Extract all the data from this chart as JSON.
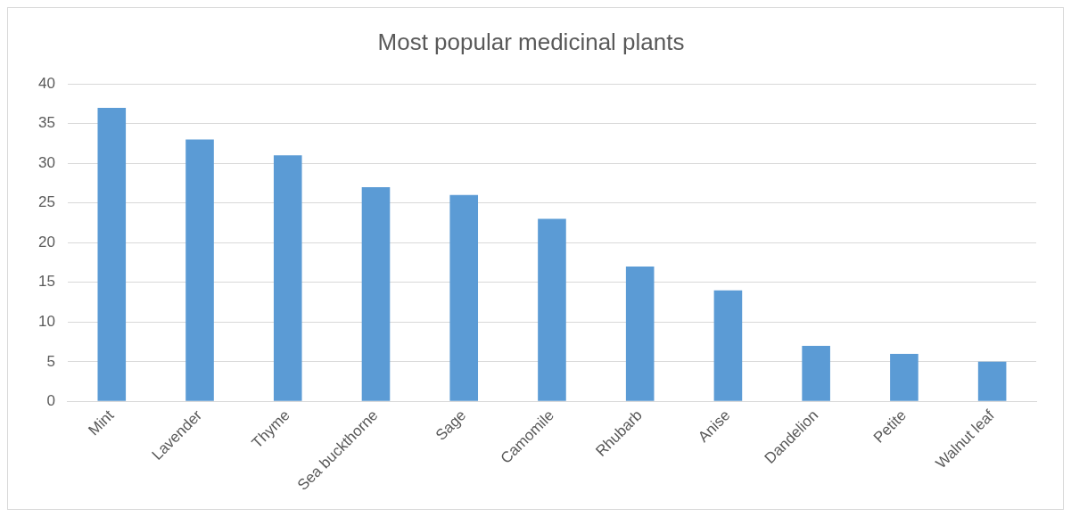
{
  "chart_data": {
    "type": "bar",
    "title": "Most popular medicinal plants",
    "categories": [
      "Mint",
      "Lavender",
      "Thyme",
      "Sea buckthorne",
      "Sage",
      "Camomile",
      "Rhubarb",
      "Anise",
      "Dandelion",
      "Petite",
      "Walnut leaf"
    ],
    "values": [
      37,
      33,
      31,
      27,
      26,
      23,
      17,
      14,
      7,
      6,
      5
    ],
    "color": "#5b9bd5",
    "ylim": [
      0,
      40
    ],
    "yticks": [
      0,
      5,
      10,
      15,
      20,
      25,
      30,
      35,
      40
    ],
    "grid": "y",
    "legend": false
  }
}
